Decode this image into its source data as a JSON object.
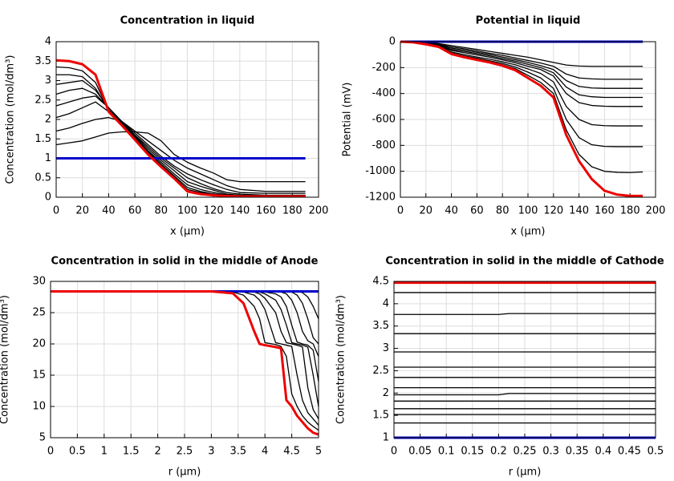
{
  "chart_data": [
    {
      "type": "line",
      "title": "Concentration in liquid",
      "xlabel": "x (µm)",
      "ylabel": "Concentration (mol/dm³)",
      "x": [
        0,
        10,
        20,
        30,
        40,
        50,
        60,
        70,
        80,
        90,
        100,
        110,
        120,
        130,
        140,
        160,
        190
      ],
      "xlim": [
        0,
        200
      ],
      "xticks": [
        0,
        20,
        40,
        60,
        80,
        100,
        120,
        140,
        160,
        180,
        200
      ],
      "ylim": [
        0,
        4
      ],
      "yticks": [
        0,
        0.5,
        1,
        1.5,
        2,
        2.5,
        3,
        3.5,
        4
      ],
      "grid": true,
      "series": [
        {
          "color": "#000000",
          "values": [
            1.35,
            1.4,
            1.45,
            1.55,
            1.65,
            1.68,
            1.68,
            1.65,
            1.45,
            1.1,
            0.9,
            0.75,
            0.62,
            0.45,
            0.4,
            0.4,
            0.4
          ]
        },
        {
          "color": "#000000",
          "values": [
            1.7,
            1.78,
            1.9,
            2.0,
            2.05,
            1.95,
            1.7,
            1.45,
            1.2,
            0.95,
            0.75,
            0.6,
            0.45,
            0.3,
            0.2,
            0.15,
            0.15
          ]
        },
        {
          "color": "#000000",
          "values": [
            2.05,
            2.15,
            2.3,
            2.45,
            2.2,
            1.95,
            1.65,
            1.35,
            1.05,
            0.8,
            0.6,
            0.45,
            0.32,
            0.2,
            0.12,
            0.1,
            0.1
          ]
        },
        {
          "color": "#000000",
          "values": [
            2.35,
            2.45,
            2.55,
            2.6,
            2.3,
            1.95,
            1.6,
            1.3,
            1.0,
            0.75,
            0.5,
            0.35,
            0.22,
            0.12,
            0.08,
            0.05,
            0.05
          ]
        },
        {
          "color": "#000000",
          "values": [
            2.65,
            2.75,
            2.8,
            2.65,
            2.3,
            1.95,
            1.58,
            1.25,
            0.95,
            0.68,
            0.4,
            0.28,
            0.18,
            0.08,
            0.05,
            0.04,
            0.04
          ]
        },
        {
          "color": "#000000",
          "values": [
            2.9,
            2.95,
            3.0,
            2.75,
            2.3,
            1.93,
            1.55,
            1.2,
            0.9,
            0.6,
            0.32,
            0.2,
            0.12,
            0.06,
            0.04,
            0.03,
            0.03
          ]
        },
        {
          "color": "#000000",
          "values": [
            3.15,
            3.15,
            3.1,
            2.8,
            2.25,
            1.9,
            1.52,
            1.17,
            0.85,
            0.55,
            0.25,
            0.15,
            0.08,
            0.05,
            0.03,
            0.02,
            0.02
          ]
        },
        {
          "color": "#000000",
          "values": [
            3.35,
            3.33,
            3.25,
            2.95,
            2.22,
            1.88,
            1.5,
            1.14,
            0.82,
            0.52,
            0.2,
            0.12,
            0.07,
            0.04,
            0.03,
            0.02,
            0.02
          ]
        },
        {
          "color": "#0000cc",
          "values": [
            1,
            1,
            1,
            1,
            1,
            1,
            1,
            1,
            1,
            1,
            1,
            1,
            1,
            1,
            1,
            1,
            1
          ]
        },
        {
          "color": "#ee0000",
          "values": [
            3.52,
            3.5,
            3.42,
            3.15,
            2.2,
            1.85,
            1.48,
            1.1,
            0.78,
            0.48,
            0.15,
            0.08,
            0.05,
            0.03,
            0.02,
            0.02,
            0.02
          ]
        }
      ]
    },
    {
      "type": "line",
      "title": "Potential in liquid",
      "xlabel": "x (µm)",
      "ylabel": "Potential (mV)",
      "x": [
        0,
        10,
        20,
        30,
        40,
        50,
        60,
        70,
        80,
        90,
        100,
        110,
        120,
        130,
        140,
        150,
        160,
        170,
        180,
        190
      ],
      "xlim": [
        0,
        200
      ],
      "xticks": [
        0,
        20,
        40,
        60,
        80,
        100,
        120,
        140,
        160,
        180,
        200
      ],
      "ylim": [
        -1200,
        0
      ],
      "yticks": [
        -1200,
        -1000,
        -800,
        -600,
        -400,
        -200,
        0
      ],
      "grid": true,
      "series": [
        {
          "color": "#000000",
          "values": [
            0,
            -2,
            -8,
            -15,
            -30,
            -45,
            -60,
            -75,
            -90,
            -105,
            -120,
            -140,
            -160,
            -180,
            -188,
            -190,
            -190,
            -190,
            -190,
            -190
          ]
        },
        {
          "color": "#000000",
          "values": [
            0,
            -3,
            -10,
            -20,
            -40,
            -55,
            -72,
            -90,
            -105,
            -125,
            -145,
            -165,
            -190,
            -250,
            -280,
            -287,
            -290,
            -290,
            -290,
            -290
          ]
        },
        {
          "color": "#000000",
          "values": [
            0,
            -3,
            -12,
            -25,
            -50,
            -65,
            -82,
            -100,
            -118,
            -138,
            -160,
            -185,
            -215,
            -300,
            -345,
            -357,
            -360,
            -360,
            -360,
            -360
          ]
        },
        {
          "color": "#000000",
          "values": [
            0,
            -4,
            -14,
            -28,
            -60,
            -75,
            -92,
            -110,
            -130,
            -150,
            -175,
            -200,
            -240,
            -350,
            -410,
            -425,
            -430,
            -430,
            -430,
            -430
          ]
        },
        {
          "color": "#000000",
          "values": [
            0,
            -4,
            -15,
            -30,
            -68,
            -85,
            -102,
            -120,
            -140,
            -162,
            -190,
            -215,
            -265,
            -400,
            -470,
            -492,
            -498,
            -500,
            -500,
            -500
          ]
        },
        {
          "color": "#000000",
          "values": [
            0,
            -5,
            -17,
            -33,
            -80,
            -100,
            -118,
            -135,
            -155,
            -178,
            -210,
            -245,
            -310,
            -500,
            -600,
            -640,
            -648,
            -650,
            -650,
            -650
          ]
        },
        {
          "color": "#000000",
          "values": [
            0,
            -5,
            -18,
            -35,
            -88,
            -110,
            -128,
            -148,
            -168,
            -195,
            -235,
            -280,
            -360,
            -600,
            -740,
            -795,
            -808,
            -810,
            -810,
            -810
          ]
        },
        {
          "color": "#000000",
          "values": [
            0,
            -5,
            -19,
            -38,
            -92,
            -115,
            -135,
            -155,
            -178,
            -208,
            -260,
            -315,
            -400,
            -680,
            -870,
            -965,
            -1000,
            -1008,
            -1010,
            -1005
          ]
        },
        {
          "color": "#0000cc",
          "values": [
            0,
            0,
            0,
            0,
            0,
            0,
            0,
            0,
            0,
            0,
            0,
            0,
            0,
            0,
            0,
            0,
            0,
            0,
            0,
            0
          ]
        },
        {
          "color": "#ee0000",
          "values": [
            0,
            -5,
            -20,
            -40,
            -95,
            -120,
            -140,
            -160,
            -185,
            -220,
            -280,
            -340,
            -430,
            -720,
            -920,
            -1060,
            -1150,
            -1180,
            -1190,
            -1190
          ]
        }
      ]
    },
    {
      "type": "line",
      "title": "Concentration in solid in the middle of Anode",
      "xlabel": "r (µm)",
      "ylabel": "Concentration (mol/dm³)",
      "x": [
        0,
        3,
        3.4,
        3.6,
        3.8,
        3.9,
        4.0,
        4.2,
        4.3,
        4.4,
        4.5,
        4.6,
        4.7,
        4.8,
        4.9,
        5.0
      ],
      "xlim": [
        0,
        5
      ],
      "xticks": [
        0,
        0.5,
        1,
        1.5,
        2,
        2.5,
        3,
        3.5,
        4,
        4.5,
        5
      ],
      "ylim": [
        5,
        30
      ],
      "yticks": [
        5,
        10,
        15,
        20,
        25,
        30
      ],
      "grid": true,
      "series": [
        {
          "color": "#000000",
          "values": [
            28.4,
            28.4,
            28.4,
            28.4,
            28.4,
            28.4,
            28.4,
            28.4,
            28.4,
            28.4,
            28.4,
            28.4,
            28.2,
            27.5,
            26,
            24
          ]
        },
        {
          "color": "#000000",
          "values": [
            28.4,
            28.4,
            28.4,
            28.4,
            28.4,
            28.4,
            28.4,
            28.4,
            28.4,
            28.4,
            28.3,
            27.8,
            26.5,
            24,
            21,
            20
          ]
        },
        {
          "color": "#000000",
          "values": [
            28.4,
            28.4,
            28.4,
            28.4,
            28.4,
            28.4,
            28.4,
            28.4,
            28.3,
            28,
            27,
            25,
            22,
            20.5,
            20,
            18
          ]
        },
        {
          "color": "#000000",
          "values": [
            28.4,
            28.4,
            28.4,
            28.4,
            28.4,
            28.4,
            28.3,
            28,
            27.5,
            26,
            23,
            20.3,
            20,
            19.8,
            19,
            14
          ]
        },
        {
          "color": "#000000",
          "values": [
            28.4,
            28.4,
            28.4,
            28.4,
            28.4,
            28.3,
            28,
            27,
            25.5,
            23,
            20.2,
            20,
            19.8,
            19.5,
            15,
            10
          ]
        },
        {
          "color": "#000000",
          "values": [
            28.4,
            28.4,
            28.4,
            28.4,
            28.3,
            28,
            27.3,
            25,
            22,
            20.2,
            20,
            19.8,
            19.5,
            13,
            9.5,
            8
          ]
        },
        {
          "color": "#000000",
          "values": [
            28.4,
            28.4,
            28.4,
            28.3,
            27.8,
            27,
            25.5,
            20.2,
            20,
            19.8,
            19.6,
            15,
            11,
            9,
            8,
            7
          ]
        },
        {
          "color": "#000000",
          "values": [
            28.4,
            28.4,
            28.3,
            27.8,
            26,
            24,
            20.2,
            19.9,
            19.6,
            18,
            12,
            10,
            8.5,
            7.5,
            6.8,
            6.2
          ]
        },
        {
          "color": "#0000cc",
          "values": [
            28.4,
            28.4,
            28.4,
            28.4,
            28.4,
            28.4,
            28.4,
            28.4,
            28.4,
            28.4,
            28.4,
            28.4,
            28.4,
            28.4,
            28.4,
            28.4
          ]
        },
        {
          "color": "#ee0000",
          "values": [
            28.4,
            28.4,
            28.1,
            26.5,
            22,
            20,
            19.8,
            19.5,
            19.3,
            11,
            10,
            8.5,
            7.5,
            6.5,
            5.8,
            5.5
          ]
        }
      ]
    },
    {
      "type": "line",
      "title": "Concentration in solid in the middle of Cathode",
      "xlabel": "r (µm)",
      "ylabel": "Concentration (mol/dm³)",
      "x": [
        0,
        0.2,
        0.22,
        0.5
      ],
      "xlim": [
        0,
        0.5
      ],
      "xticks": [
        0,
        0.05,
        0.1,
        0.15,
        0.2,
        0.25,
        0.3,
        0.35,
        0.4,
        0.45,
        0.5
      ],
      "ylim": [
        1,
        4.5
      ],
      "yticks": [
        1,
        1.5,
        2,
        2.5,
        3,
        3.5,
        4,
        4.5
      ],
      "grid": true,
      "series": [
        {
          "color": "#000000",
          "values": [
            4.25,
            4.25,
            4.25,
            4.25
          ]
        },
        {
          "color": "#000000",
          "values": [
            3.76,
            3.76,
            3.78,
            3.78
          ]
        },
        {
          "color": "#000000",
          "values": [
            3.33,
            3.33,
            3.33,
            3.33
          ]
        },
        {
          "color": "#000000",
          "values": [
            2.92,
            2.92,
            2.92,
            2.92
          ]
        },
        {
          "color": "#000000",
          "values": [
            2.58,
            2.58,
            2.58,
            2.58
          ]
        },
        {
          "color": "#000000",
          "values": [
            2.35,
            2.35,
            2.35,
            2.35
          ]
        },
        {
          "color": "#000000",
          "values": [
            2.12,
            2.12,
            2.12,
            2.12
          ]
        },
        {
          "color": "#000000",
          "values": [
            1.96,
            1.96,
            1.99,
            1.99
          ]
        },
        {
          "color": "#000000",
          "values": [
            1.82,
            1.82,
            1.82,
            1.82
          ]
        },
        {
          "color": "#000000",
          "values": [
            1.65,
            1.65,
            1.65,
            1.65
          ]
        },
        {
          "color": "#000000",
          "values": [
            1.52,
            1.52,
            1.52,
            1.52
          ]
        },
        {
          "color": "#000000",
          "values": [
            1.33,
            1.33,
            1.33,
            1.33
          ]
        },
        {
          "color": "#0000cc",
          "values": [
            1,
            1,
            1,
            1
          ]
        },
        {
          "color": "#ee0000",
          "values": [
            4.47,
            4.47,
            4.47,
            4.47
          ]
        }
      ]
    }
  ]
}
